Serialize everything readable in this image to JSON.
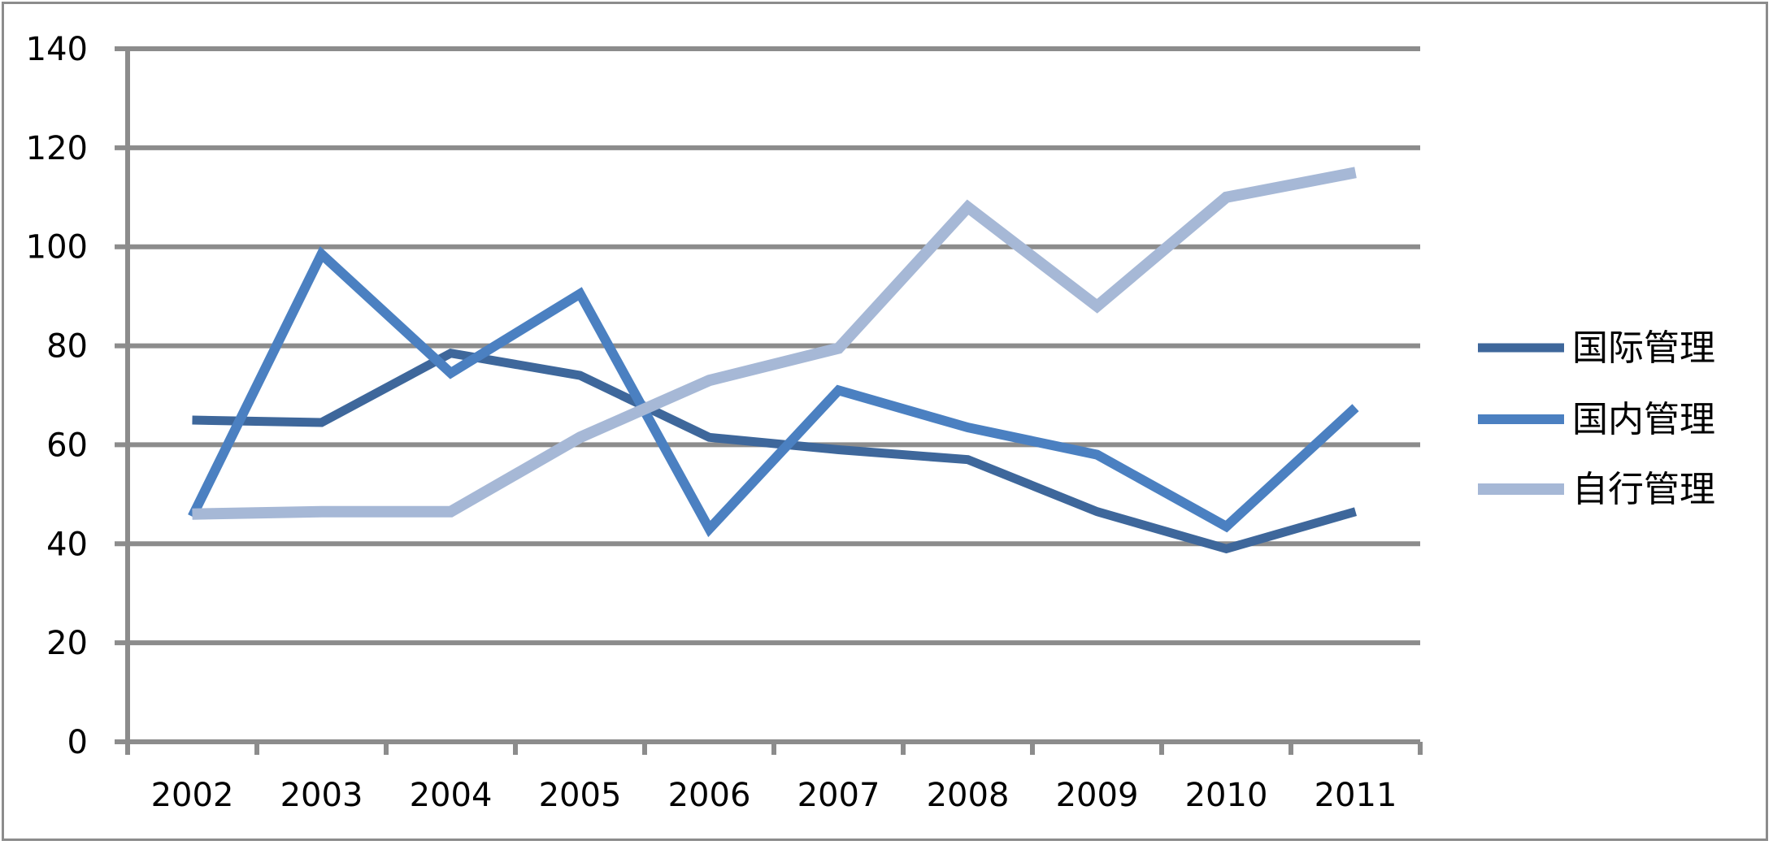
{
  "chart_data": {
    "type": "line",
    "title": "",
    "xlabel": "",
    "ylabel": "",
    "categories": [
      "2002",
      "2003",
      "2004",
      "2005",
      "2006",
      "2007",
      "2008",
      "2009",
      "2010",
      "2011"
    ],
    "ylim": [
      0,
      140
    ],
    "y_ticks": [
      "0",
      "20",
      "40",
      "60",
      "80",
      "100",
      "120",
      "140"
    ],
    "grid": true,
    "legend_position": "right",
    "series": [
      {
        "name": "国际管理",
        "color": "#3e679b",
        "values": [
          65,
          64.5,
          78.5,
          74,
          61.5,
          59,
          57,
          46.5,
          39,
          46.5
        ]
      },
      {
        "name": "国内管理",
        "color": "#4b80c1",
        "values": [
          45.5,
          98.5,
          74.5,
          90.5,
          43,
          71,
          63.5,
          58,
          43.5,
          67.5
        ]
      },
      {
        "name": "自行管理",
        "color": "#a6b8d6",
        "values": [
          46,
          46.5,
          46.5,
          61.5,
          73,
          79.5,
          108,
          88,
          110,
          115
        ]
      }
    ]
  }
}
